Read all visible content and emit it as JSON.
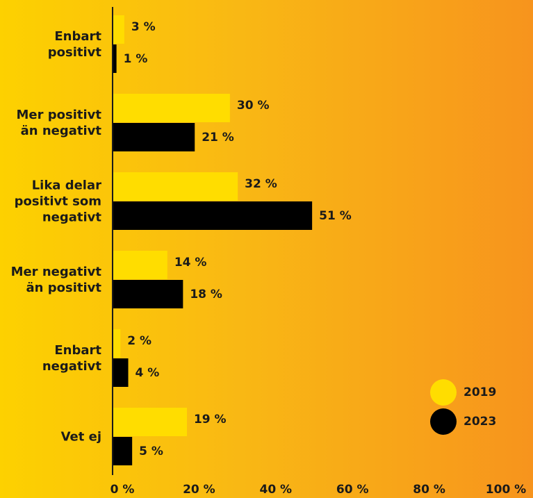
{
  "chart_data": {
    "type": "bar",
    "orientation": "horizontal",
    "categories": [
      "Enbart\npositivt",
      "Mer positivt\nän negativt",
      "Lika delar\npositivt som\nnegativt",
      "Mer negativt\nän positivt",
      "Enbart\nnegativt",
      "Vet ej"
    ],
    "series": [
      {
        "name": "2019",
        "color": "#ffdd00",
        "values": [
          3,
          30,
          32,
          14,
          2,
          19
        ],
        "value_labels": [
          "3 %",
          "30 %",
          "32 %",
          "14 %",
          "2 %",
          "19 %"
        ]
      },
      {
        "name": "2023",
        "color": "#000000",
        "values": [
          1,
          21,
          51,
          18,
          4,
          5
        ],
        "value_labels": [
          "1 %",
          "21 %",
          "51 %",
          "18 %",
          "4 %",
          "5 %"
        ]
      }
    ],
    "xlim": [
      0,
      100
    ],
    "xticks": [
      {
        "value": 0,
        "label": "0 %"
      },
      {
        "value": 20,
        "label": "20 %"
      },
      {
        "value": 40,
        "label": "40 %"
      },
      {
        "value": 60,
        "label": "60 %"
      },
      {
        "value": 80,
        "label": "80 %"
      },
      {
        "value": 100,
        "label": "100 %"
      }
    ]
  }
}
